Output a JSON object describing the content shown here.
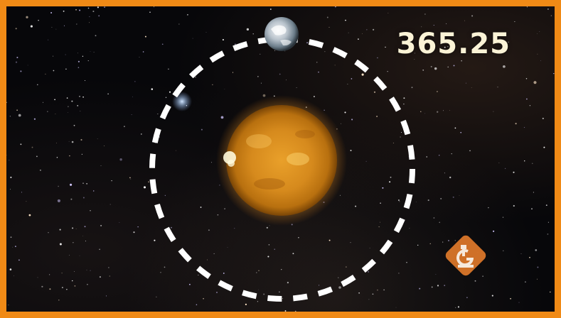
{
  "video": {
    "day_counter": "365.25"
  },
  "icons": {
    "earth": "earth-icon",
    "sun": "sun-icon",
    "orbit": "orbit-path",
    "brand_logo": "microscope-g-logo-icon"
  },
  "colors": {
    "frame_border": "#f08a16",
    "counter_text": "#fbf3d6",
    "orbit_dash": "#ffffff",
    "sun_core": "#f6b43a",
    "logo_fill": "#e07a2a"
  }
}
